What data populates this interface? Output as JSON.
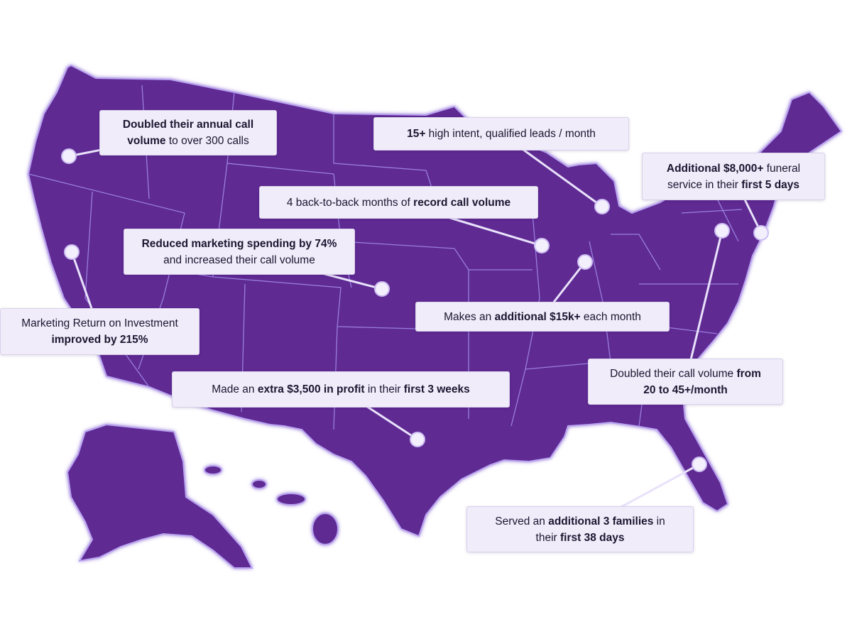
{
  "callouts": [
    {
      "lines": [
        [
          {
            "text": "Doubled their annual call",
            "bold": true
          }
        ],
        [
          {
            "text": "volume",
            "bold": true
          },
          {
            "text": " to over 300 calls",
            "bold": false
          }
        ]
      ]
    },
    {
      "lines": [
        [
          {
            "text": "15+",
            "bold": true
          },
          {
            "text": " high intent, qualified leads / month",
            "bold": false
          }
        ]
      ]
    },
    {
      "lines": [
        [
          {
            "text": "Additional $8,000+",
            "bold": true
          },
          {
            "text": " funeral",
            "bold": false
          }
        ],
        [
          {
            "text": "service in their ",
            "bold": false
          },
          {
            "text": "first 5 days",
            "bold": true
          }
        ]
      ]
    },
    {
      "lines": [
        [
          {
            "text": "4 back-to-back months of ",
            "bold": false
          },
          {
            "text": "record call volume",
            "bold": true
          }
        ]
      ]
    },
    {
      "lines": [
        [
          {
            "text": "Reduced marketing spending by 74%",
            "bold": true
          }
        ],
        [
          {
            "text": "and increased their call volume",
            "bold": false
          }
        ]
      ]
    },
    {
      "lines": [
        [
          {
            "text": "Marketing Return on Investment",
            "bold": false
          }
        ],
        [
          {
            "text": "improved by 215%",
            "bold": true
          }
        ]
      ]
    },
    {
      "lines": [
        [
          {
            "text": "Makes an ",
            "bold": false
          },
          {
            "text": "additional $15k+",
            "bold": true
          },
          {
            "text": " each month",
            "bold": false
          }
        ]
      ]
    },
    {
      "lines": [
        [
          {
            "text": "Doubled their call volume ",
            "bold": false
          },
          {
            "text": "from",
            "bold": true
          }
        ],
        [
          {
            "text": "20 to 45+/month",
            "bold": true
          }
        ]
      ]
    },
    {
      "lines": [
        [
          {
            "text": "Made an ",
            "bold": false
          },
          {
            "text": "extra $3,500 in profit",
            "bold": true
          },
          {
            "text": " in their ",
            "bold": false
          },
          {
            "text": "first 3 weeks",
            "bold": true
          }
        ]
      ]
    },
    {
      "lines": [
        [
          {
            "text": "Served an ",
            "bold": false
          },
          {
            "text": "additional 3 families",
            "bold": true
          },
          {
            "text": " in",
            "bold": false
          }
        ],
        [
          {
            "text": "their ",
            "bold": false
          },
          {
            "text": "first 38 days",
            "bold": true
          }
        ]
      ]
    }
  ]
}
